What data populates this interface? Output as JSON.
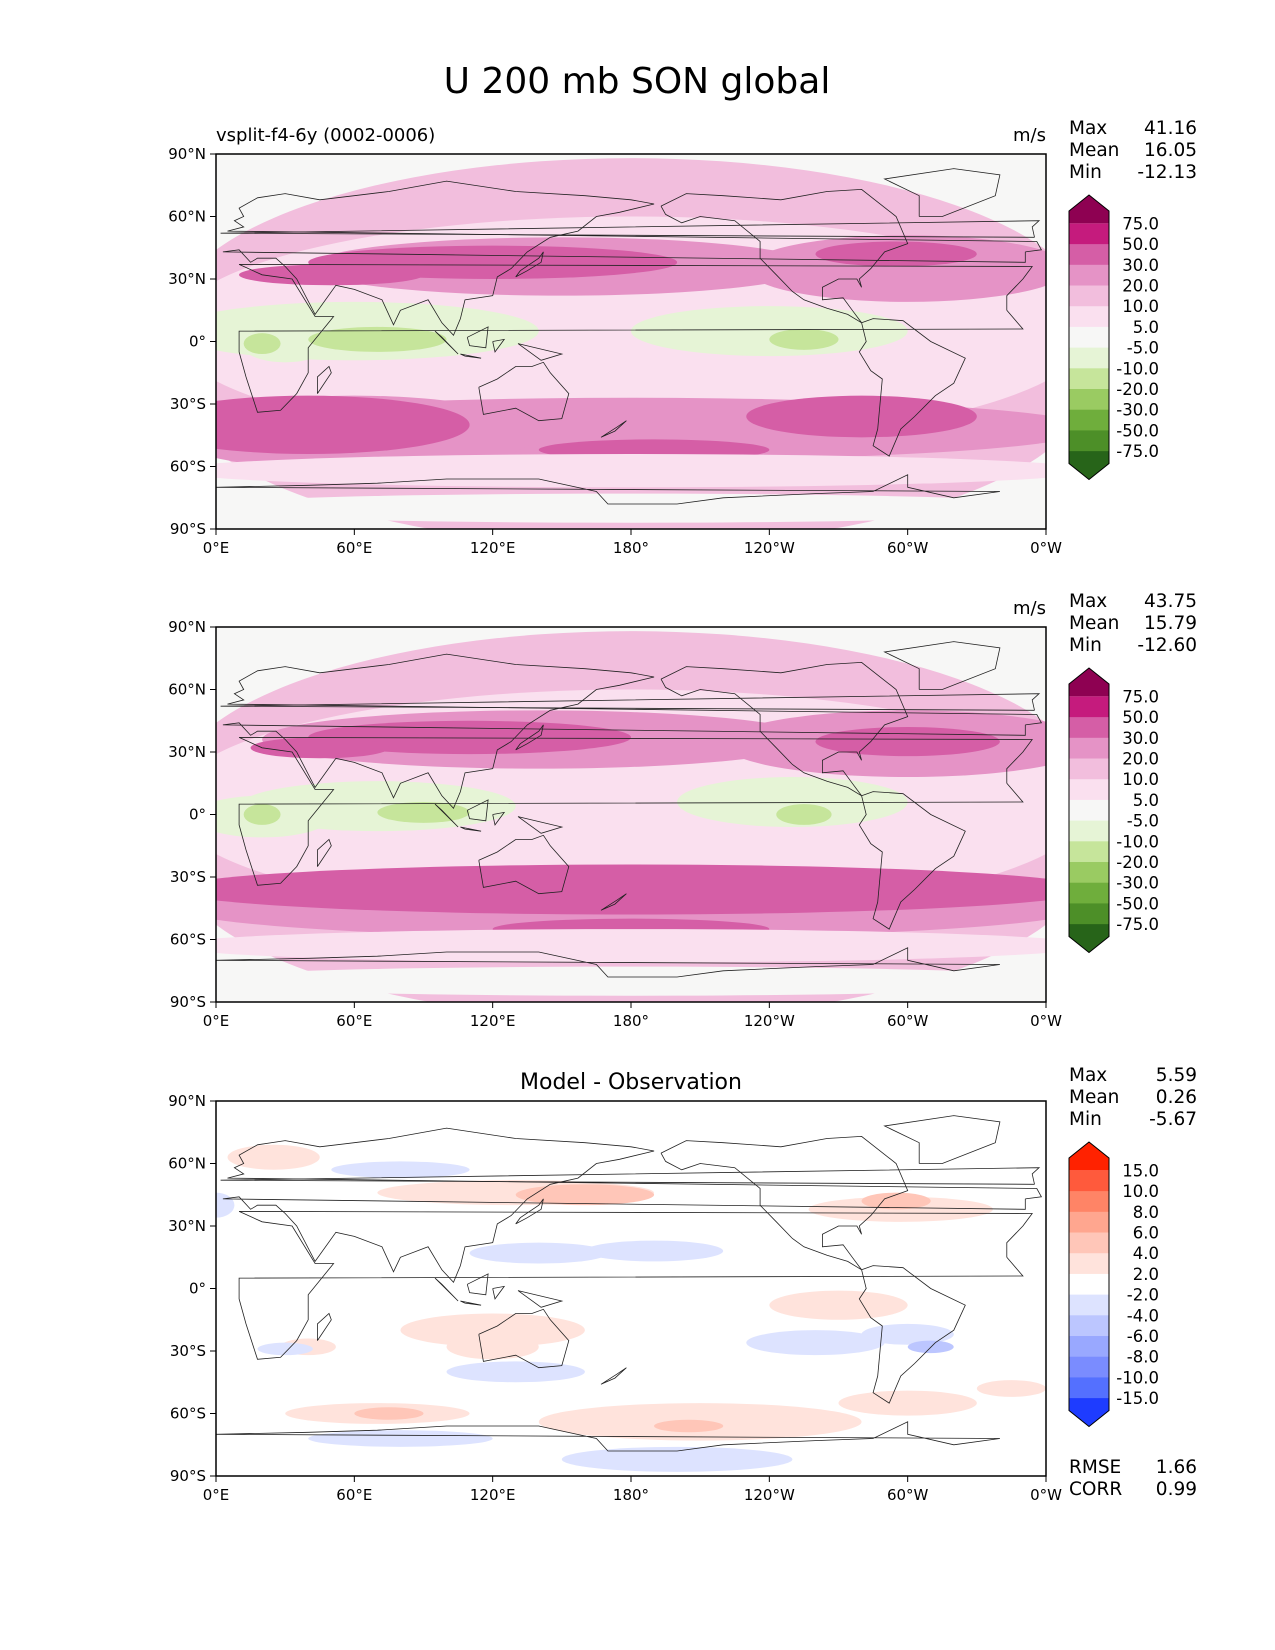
{
  "chart_data": {
    "title": "U 200 mb SON global",
    "type": "heatmap",
    "x_ticks": [
      "0°E",
      "60°E",
      "120°E",
      "180°",
      "120°W",
      "60°W",
      "0°W"
    ],
    "y_ticks": [
      "90°N",
      "60°N",
      "30°N",
      "0°",
      "30°S",
      "60°S",
      "90°S"
    ],
    "xlim": [
      0,
      360
    ],
    "ylim": [
      -90,
      90
    ],
    "panels": [
      {
        "name": "test",
        "left_title": "vsplit-f4-6y (0002-0006)",
        "center_title": "",
        "units": "m/s",
        "stats": [
          {
            "label": "Max",
            "value": "41.16"
          },
          {
            "label": "Mean",
            "value": "16.05"
          },
          {
            "label": "Min",
            "value": "-12.13"
          }
        ],
        "colorbar": {
          "levels": [
            "75.0",
            "50.0",
            "30.0",
            "20.0",
            "10.0",
            "5.0",
            "-5.0",
            "-10.0",
            "-20.0",
            "-30.0",
            "-50.0",
            "-75.0"
          ],
          "colors": [
            "#8e0152",
            "#c51b7d",
            "#d55ea6",
            "#e593c6",
            "#f2bedd",
            "#fae0ef",
            "#f7f7f6",
            "#e6f4d6",
            "#c6e59b",
            "#9acb62",
            "#6fae3c",
            "#4d8f28",
            "#276419"
          ]
        },
        "bottom_stats": []
      },
      {
        "name": "reference",
        "left_title": "",
        "center_title": "",
        "units": "m/s",
        "stats": [
          {
            "label": "Max",
            "value": "43.75"
          },
          {
            "label": "Mean",
            "value": "15.79"
          },
          {
            "label": "Min",
            "value": "-12.60"
          }
        ],
        "colorbar": {
          "levels": [
            "75.0",
            "50.0",
            "30.0",
            "20.0",
            "10.0",
            "5.0",
            "-5.0",
            "-10.0",
            "-20.0",
            "-30.0",
            "-50.0",
            "-75.0"
          ],
          "colors": [
            "#8e0152",
            "#c51b7d",
            "#d55ea6",
            "#e593c6",
            "#f2bedd",
            "#fae0ef",
            "#f7f7f6",
            "#e6f4d6",
            "#c6e59b",
            "#9acb62",
            "#6fae3c",
            "#4d8f28",
            "#276419"
          ]
        },
        "bottom_stats": []
      },
      {
        "name": "diff",
        "left_title": "",
        "center_title": "Model - Observation",
        "units": "",
        "stats": [
          {
            "label": "Max",
            "value": "5.59"
          },
          {
            "label": "Mean",
            "value": "0.26"
          },
          {
            "label": "Min",
            "value": "-5.67"
          }
        ],
        "colorbar": {
          "levels": [
            "15.0",
            "10.0",
            "8.0",
            "6.0",
            "4.0",
            "2.0",
            "-2.0",
            "-4.0",
            "-6.0",
            "-8.0",
            "-10.0",
            "-15.0"
          ],
          "colors": [
            "#ff2200",
            "#ff5a3c",
            "#ff8466",
            "#ffa68f",
            "#ffc6b8",
            "#ffe3dc",
            "#ffffff",
            "#dde3ff",
            "#bcc6ff",
            "#99a8ff",
            "#7a8cff",
            "#5470ff",
            "#1e3cff"
          ]
        },
        "bottom_stats": [
          {
            "label": "RMSE",
            "value": "1.66"
          },
          {
            "label": "CORR",
            "value": "0.99"
          }
        ]
      }
    ]
  }
}
